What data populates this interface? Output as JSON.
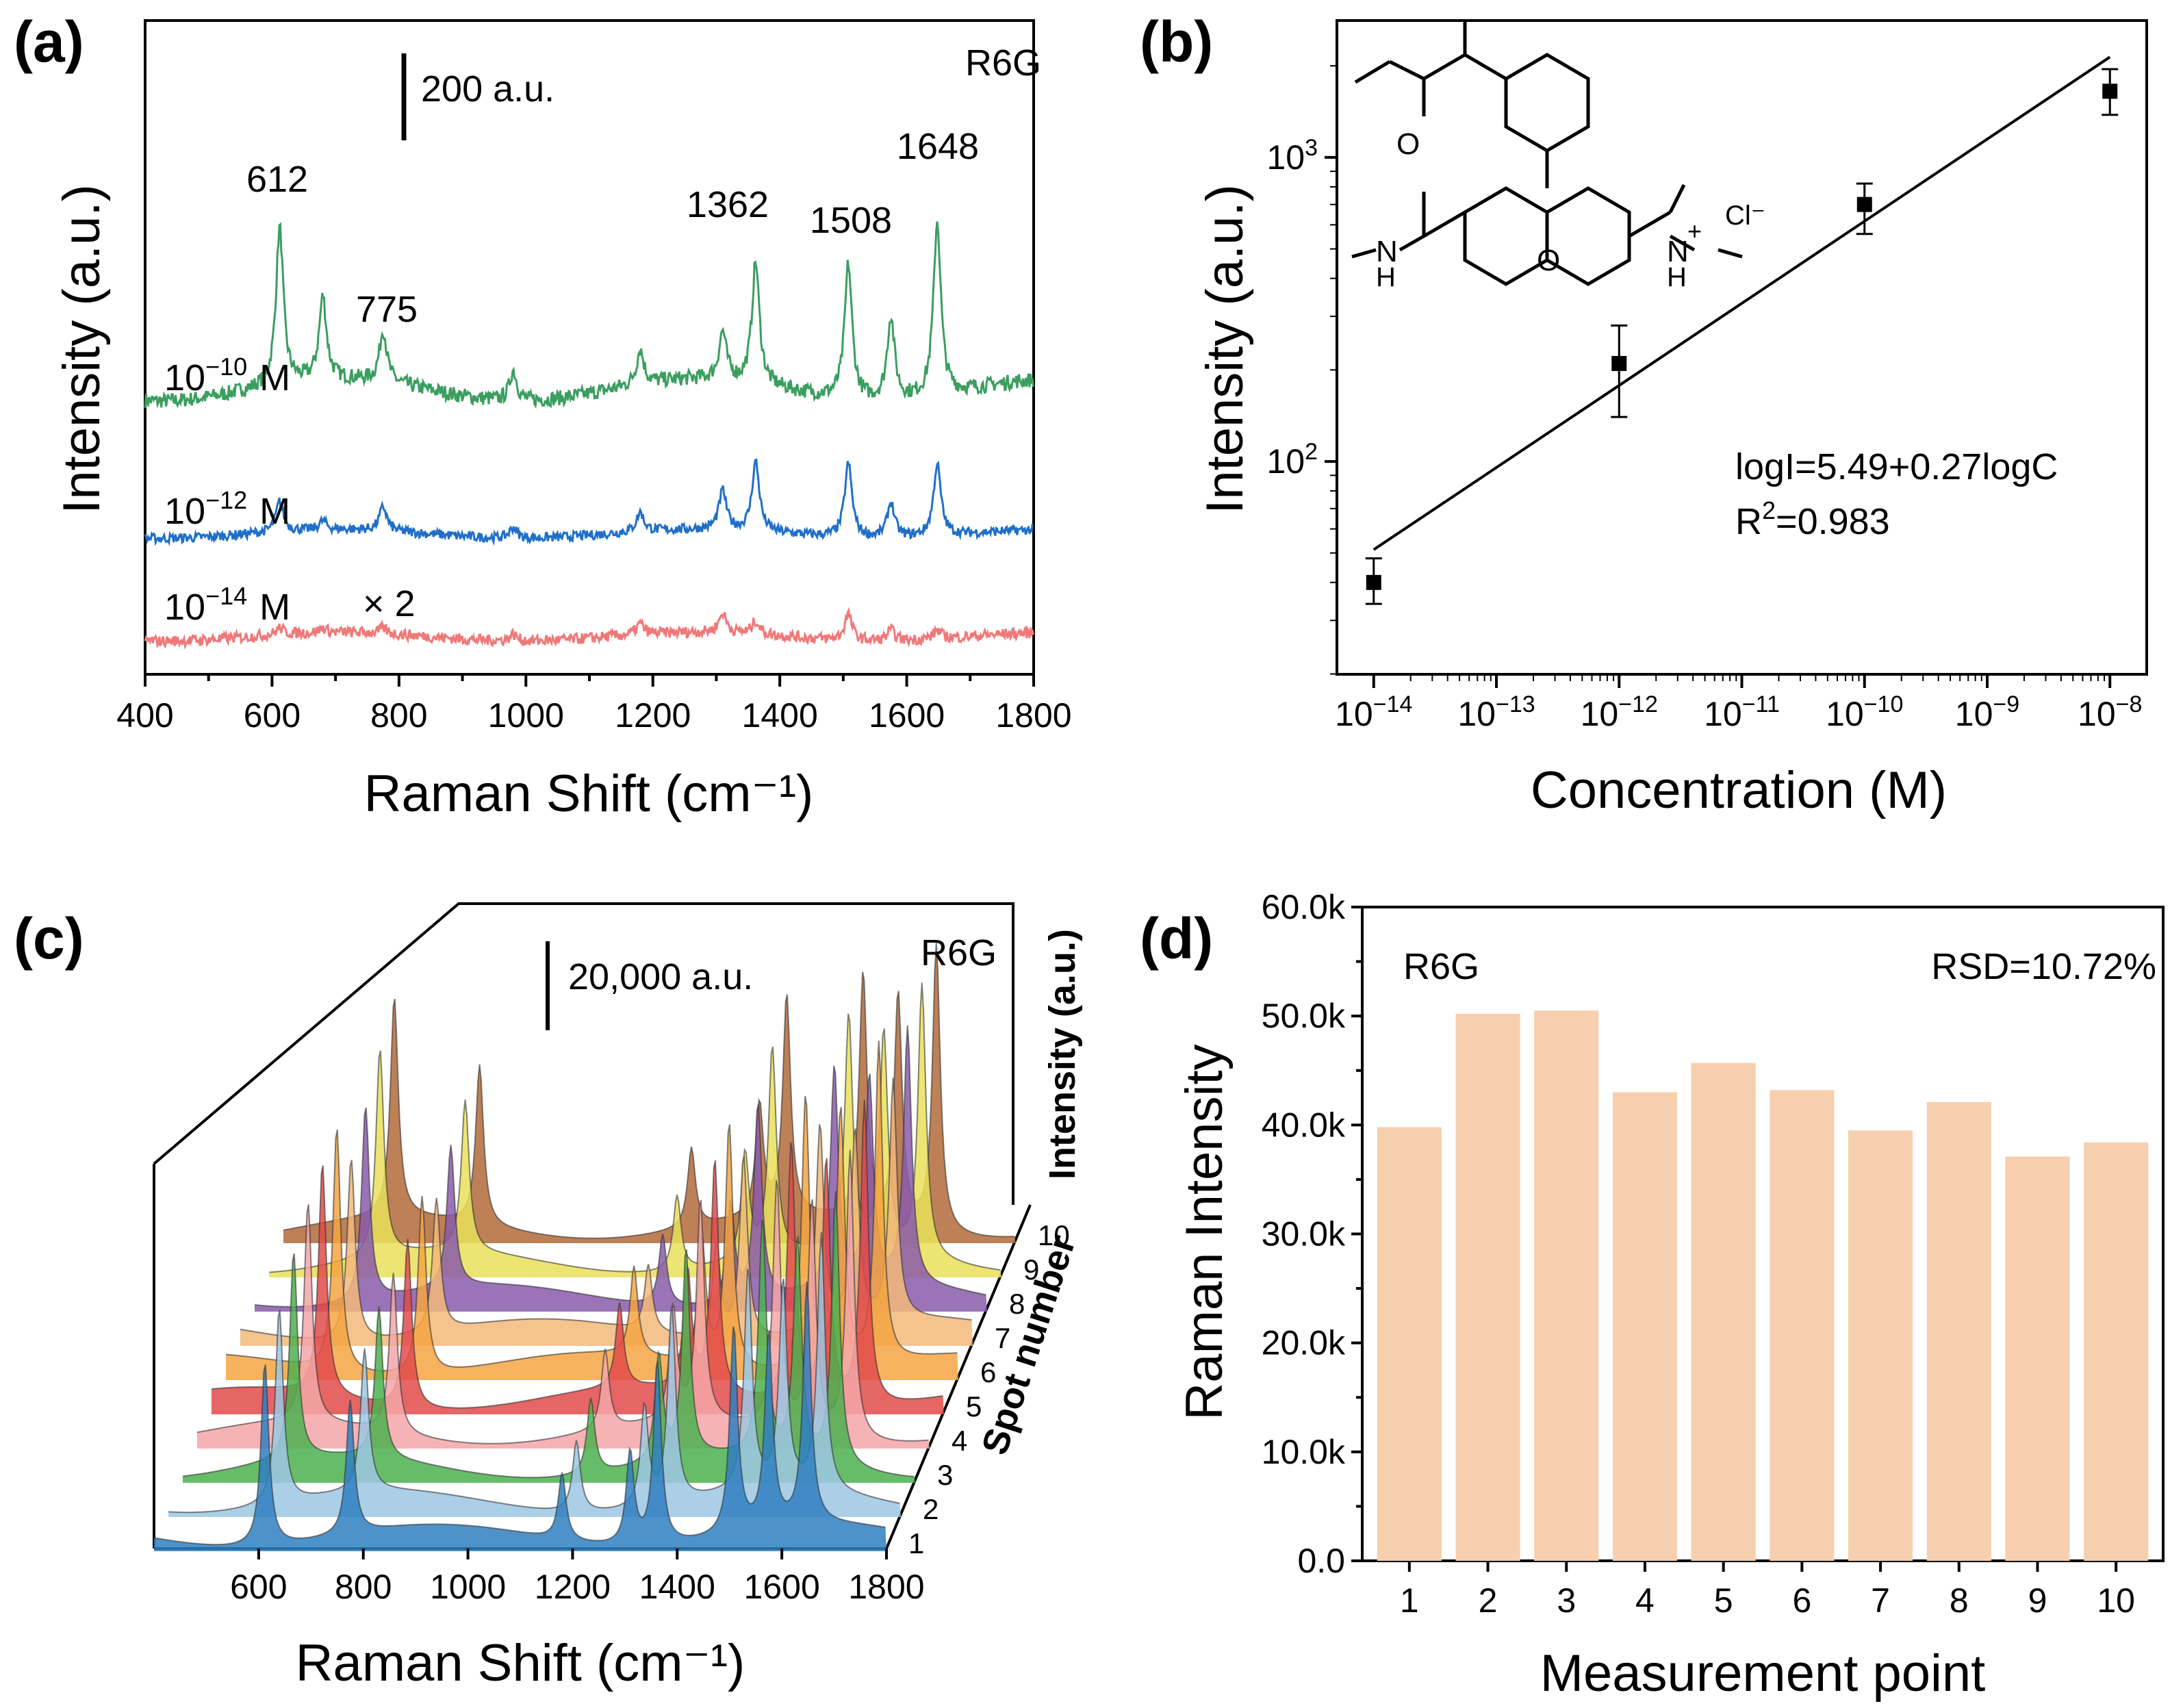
{
  "chart_data": [
    {
      "panel": "(a)",
      "type": "line",
      "title": "R6G",
      "xlabel": "Raman Shift (cm⁻¹)",
      "ylabel": "Intensity (a.u.)",
      "xlim": [
        400,
        1800
      ],
      "xticks": [
        "400",
        "600",
        "800",
        "1000",
        "1200",
        "1400",
        "1600",
        "1800"
      ],
      "scale_bar": "200 a.u.",
      "peak_positions": [
        612,
        680,
        775,
        980,
        1180,
        1310,
        1362,
        1508,
        1575,
        1648
      ],
      "peak_labels": [
        "612",
        "775",
        "1362",
        "1508",
        "1648"
      ],
      "series": [
        {
          "name": "10⁻¹⁰ M",
          "label_base": "10",
          "label_exp": "−10",
          "label_unit": "M",
          "color": "#3a9e5f",
          "peak_heights_au": [
            360,
            190,
            120,
            70,
            80,
            110,
            280,
            310,
            190,
            400
          ]
        },
        {
          "name": "10⁻¹² M",
          "label_base": "10",
          "label_exp": "−12",
          "label_unit": "M",
          "color": "#1f6fc9",
          "peak_heights_au": [
            70,
            20,
            55,
            25,
            45,
            90,
            160,
            170,
            80,
            165
          ]
        },
        {
          "name": "10⁻¹⁴ M",
          "label_base": "10",
          "label_exp": "−14",
          "label_unit": "M",
          "color": "#f07878",
          "multiplier": "× 2",
          "peak_heights_au": [
            15,
            10,
            12,
            15,
            25,
            45,
            30,
            60,
            25,
            20
          ]
        }
      ]
    },
    {
      "panel": "(b)",
      "type": "scatter",
      "xscale": "log",
      "yscale": "log",
      "xlabel": "Concentration (M)",
      "ylabel": "Intensity (a.u.)",
      "xlim": [
        -14.3,
        -7.7
      ],
      "ylim": [
        1.3,
        3.45
      ],
      "xtick_exponents": [
        "−14",
        "−13",
        "−12",
        "−11",
        "−10",
        "−9",
        "−8"
      ],
      "ytick_exponents": [
        "2",
        "3"
      ],
      "x": [
        1e-14,
        1e-12,
        1e-10,
        1e-08
      ],
      "y": [
        40,
        210,
        700,
        1650
      ],
      "y_err_low": [
        34,
        140,
        560,
        1380
      ],
      "y_err_high": [
        48,
        280,
        820,
        1950
      ],
      "fit": {
        "intercept": 5.49,
        "slope": 0.27
      },
      "equation": "logI=5.49+0.27logC",
      "r2_label": "R",
      "r2_sup": "2",
      "r2_value": "=0.983",
      "molecule_labels": {
        "chloride": "Cl⁻",
        "n": "N",
        "h": "H",
        "o": "O",
        "plus": "+"
      }
    },
    {
      "panel": "(c)",
      "type": "line",
      "layout": "3d-waterfall",
      "title": "R6G",
      "xlabel": "Raman Shift (cm⁻¹)",
      "zlabel": "Intensity (a.u.)",
      "ylabel": "Spot number",
      "xlim": [
        400,
        1800
      ],
      "xticks": [
        "600",
        "800",
        "1000",
        "1200",
        "1400",
        "1600",
        "1800"
      ],
      "spots": [
        "1",
        "2",
        "3",
        "4",
        "5",
        "6",
        "7",
        "8",
        "9",
        "10"
      ],
      "spot_colors": [
        "#2f7fc1",
        "#9cc7e3",
        "#4cb050",
        "#f4a6a8",
        "#e24a4a",
        "#f5a442",
        "#f2b97a",
        "#8a5aaa",
        "#eae05a",
        "#b36a3a"
      ],
      "peak_positions": [
        612,
        775,
        1180,
        1310,
        1362,
        1508,
        1575,
        1648
      ],
      "peak_heights_au": [
        55000,
        40000,
        20000,
        28000,
        55000,
        62000,
        58000,
        72000
      ],
      "scale_bar": "20,000 a.u."
    },
    {
      "panel": "(d)",
      "type": "bar",
      "title": "R6G",
      "annotation": "RSD=10.72%",
      "xlabel": "Measurement point",
      "ylabel": "Raman Intensity",
      "categories": [
        "1",
        "2",
        "3",
        "4",
        "5",
        "6",
        "7",
        "8",
        "9",
        "10"
      ],
      "values": [
        39800,
        50200,
        50500,
        43000,
        45700,
        43200,
        39500,
        42100,
        37100,
        38400
      ],
      "ylim": [
        0,
        60000
      ],
      "yticks": [
        "0.0",
        "10.0k",
        "20.0k",
        "30.0k",
        "40.0k",
        "50.0k",
        "60.0k"
      ],
      "bar_color": "#f6cfae"
    }
  ]
}
